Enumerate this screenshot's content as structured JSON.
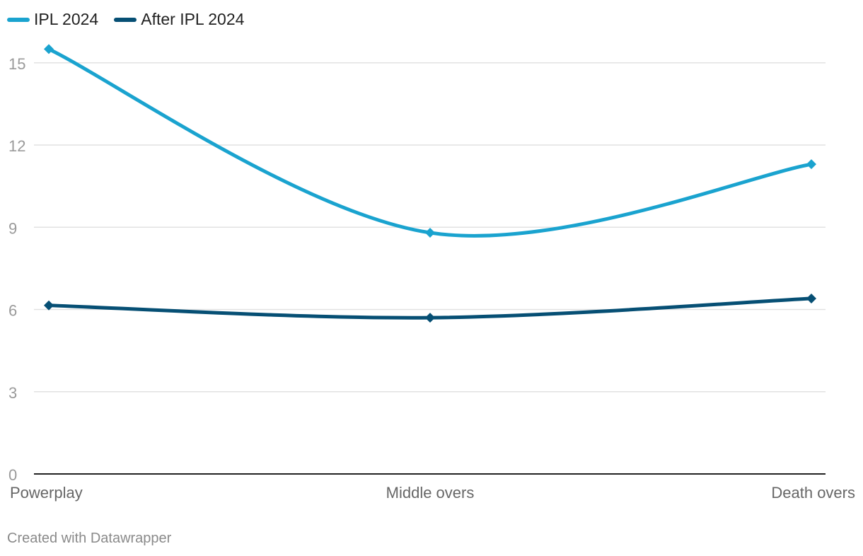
{
  "footer": {
    "credit": "Created with Datawrapper"
  },
  "colors": {
    "series1": "#1aa3cf",
    "series2": "#064f74",
    "grid": "#e2e2e2",
    "axis": "#222222",
    "tick_text": "#9a9a9a",
    "category_text": "#666666"
  },
  "chart_data": {
    "type": "line",
    "categories": [
      "Powerplay",
      "Middle overs",
      "Death overs"
    ],
    "series": [
      {
        "name": "IPL 2024",
        "values": [
          15.5,
          8.8,
          11.3
        ]
      },
      {
        "name": "After IPL 2024",
        "values": [
          6.15,
          5.7,
          6.4
        ]
      }
    ],
    "y_ticks": [
      "0",
      "3",
      "6",
      "9",
      "12",
      "15"
    ],
    "ylim": [
      0,
      16.5
    ],
    "grid": true,
    "legend": "top-left",
    "smooth": true,
    "marker": "diamond"
  }
}
